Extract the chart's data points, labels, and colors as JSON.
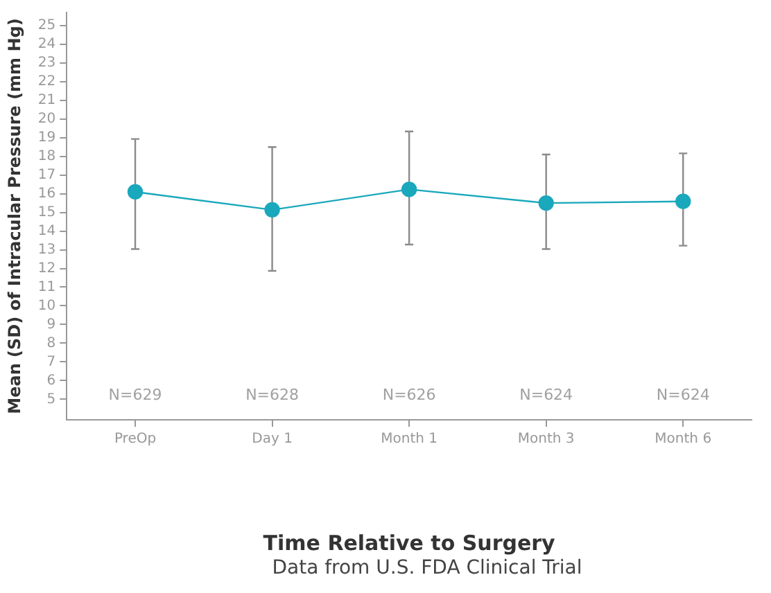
{
  "chart_data": {
    "type": "line",
    "xlabel": "Time Relative to Surgery",
    "ylabel": "Mean (SD) of Intracular Pressure (mm Hg)",
    "categories": [
      "PreOp",
      "Day 1",
      "Month 1",
      "Month 3",
      "Month 6"
    ],
    "series": [
      {
        "color": "#1aa8bc",
        "values": [
          16.1,
          15.14,
          16.23,
          15.5,
          15.59
        ],
        "errors": [
          [
            13.04,
            18.93
          ],
          [
            11.87,
            18.5
          ],
          [
            13.28,
            19.33
          ],
          [
            13.04,
            18.1
          ],
          [
            13.22,
            18.16
          ]
        ]
      }
    ],
    "ylim": [
      3.9,
      25.7
    ],
    "yticks": [
      5,
      6,
      7,
      8,
      9,
      10,
      11,
      12,
      13,
      14,
      15,
      16,
      17,
      18,
      19,
      20,
      21,
      22,
      23,
      24,
      25
    ],
    "annotations": [
      "N=629",
      "N=628",
      "N=626",
      "N=624",
      "N=624",
      "Data from U.S. FDA Clinical Trial"
    ],
    "grid": false,
    "legend": false,
    "marker": "circle",
    "line_style": "solid"
  }
}
